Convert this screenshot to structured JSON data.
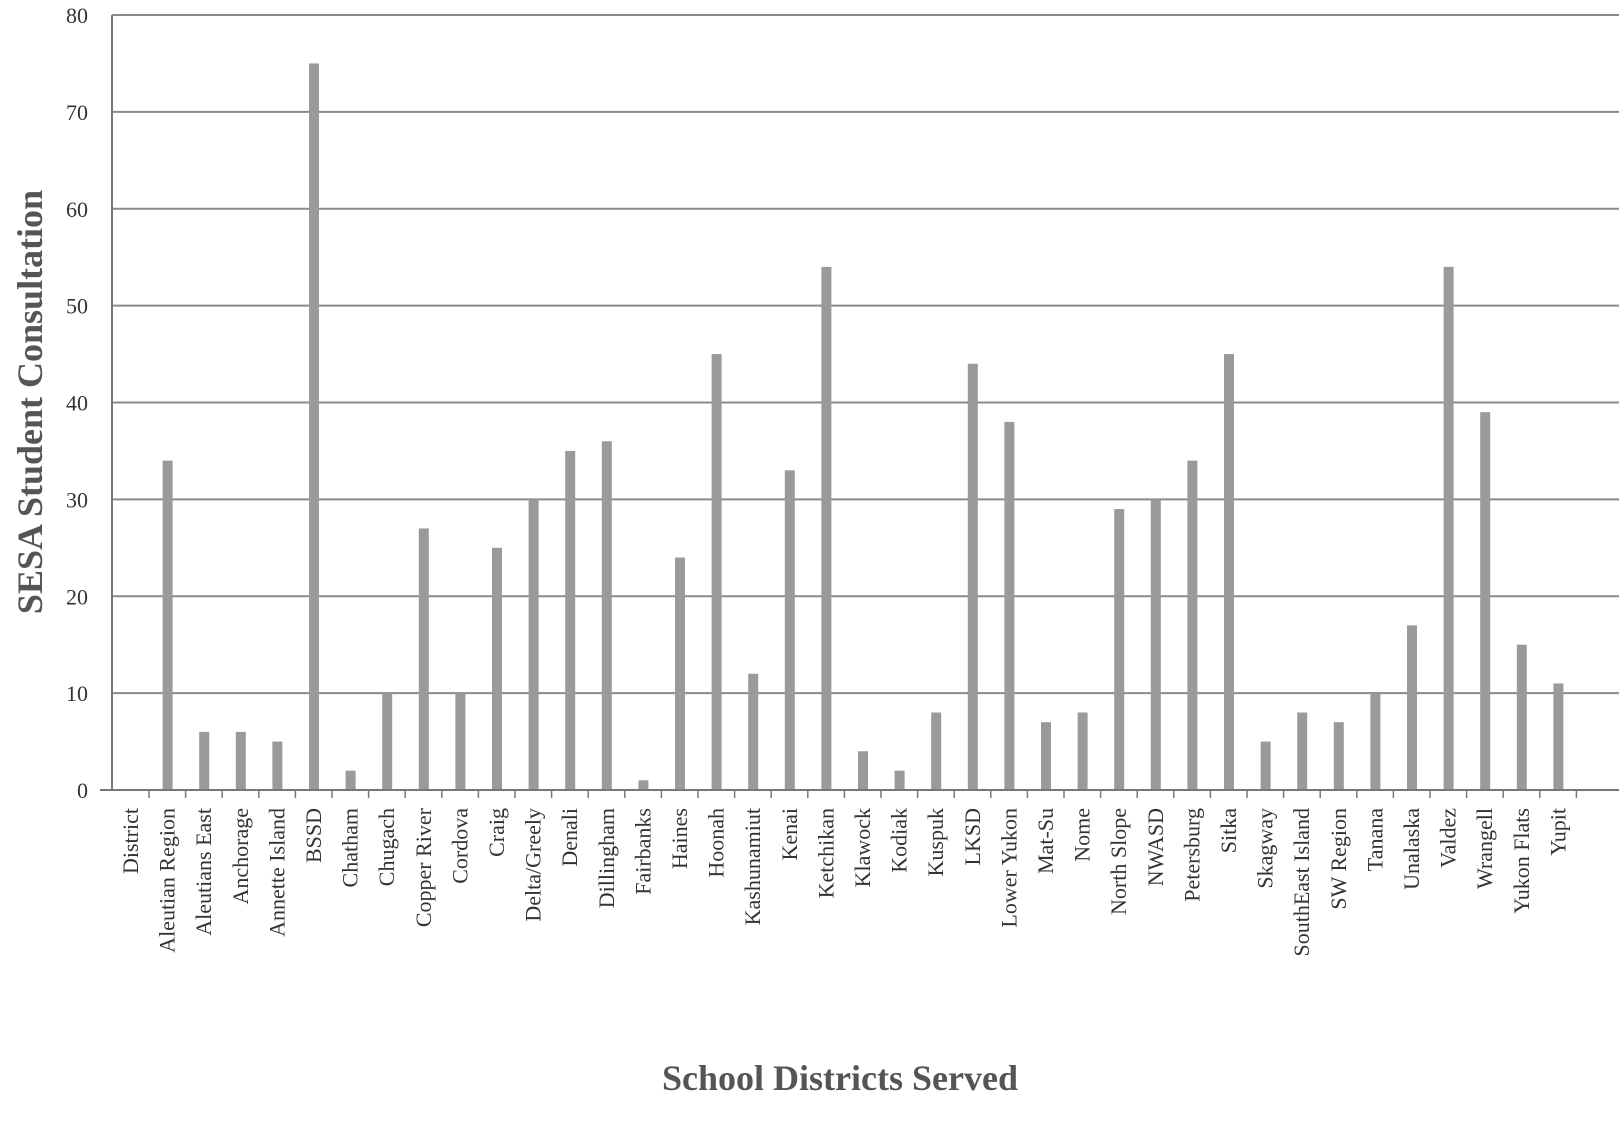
{
  "chart_data": {
    "type": "bar",
    "title": "",
    "xlabel": "School Districts Served",
    "ylabel": "SESA Student  Consultation",
    "ylim": [
      0,
      80
    ],
    "yticks": [
      0,
      10,
      20,
      30,
      40,
      50,
      60,
      70,
      80
    ],
    "grid": true,
    "legend": "none",
    "bar_color": "#9a9a9a",
    "grid_color": "#8a8a8a",
    "categories": [
      "District",
      "Aleutian Region",
      "Aleutians East",
      "Anchorage",
      "Annette Island",
      "BSSD",
      "Chatham",
      "Chugach",
      "Copper River",
      "Cordova",
      "Craig",
      "Delta/Greely",
      "Denali",
      "Dillingham",
      "Fairbanks",
      "Haines",
      "Hoonah",
      "Kashunamiut",
      "Kenai",
      "Ketchikan",
      "Klawock",
      "Kodiak",
      "Kuspuk",
      "LKSD",
      "Lower Yukon",
      "Mat-Su",
      "Nome",
      "North Slope",
      "NWASD",
      "Petersburg",
      "Sitka",
      "Skagway",
      "SouthEast Island",
      "SW Region",
      "Tanana",
      "Unalaska",
      "Valdez",
      "Wrangell",
      "Yukon Flats",
      "Yupit"
    ],
    "values": [
      0,
      34,
      6,
      6,
      5,
      75,
      2,
      10,
      27,
      10,
      25,
      30,
      35,
      36,
      1,
      24,
      45,
      12,
      33,
      54,
      4,
      2,
      8,
      44,
      38,
      7,
      8,
      29,
      30,
      34,
      45,
      5,
      8,
      7,
      10,
      17,
      54,
      39,
      15,
      11
    ]
  }
}
